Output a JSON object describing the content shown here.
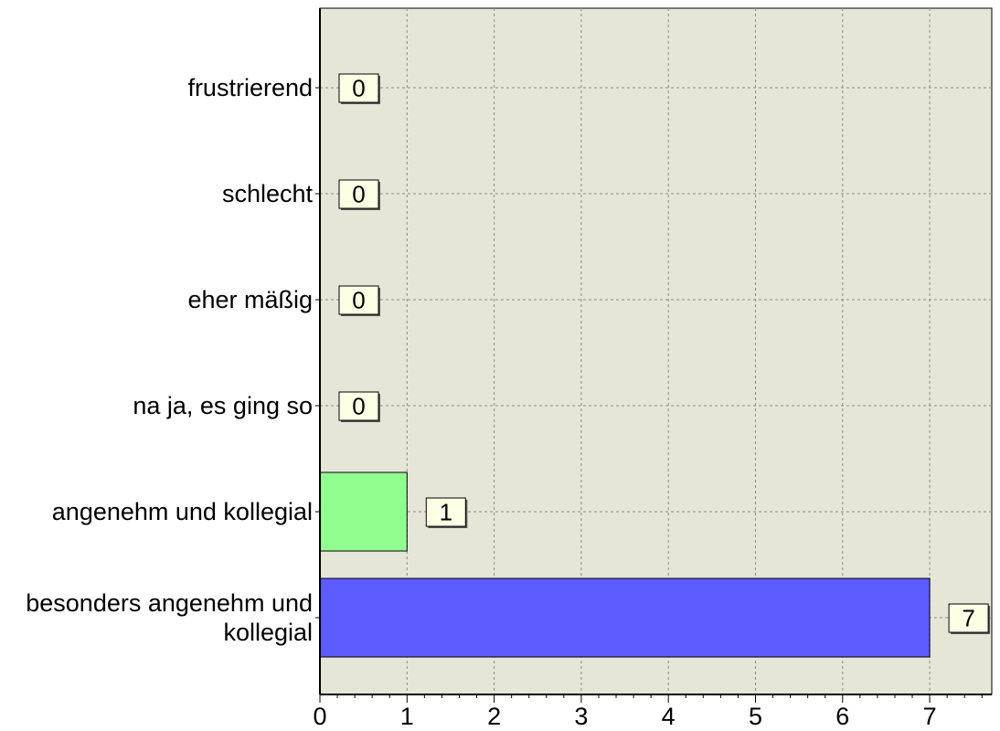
{
  "chart_data": {
    "type": "bar",
    "orientation": "horizontal",
    "categories": [
      "frustrierend",
      "schlecht",
      "eher mäßig",
      "na ja, es ging so",
      "angenehm und kollegial",
      "besonders angenehm und kollegial"
    ],
    "category_lines": [
      [
        "frustrierend"
      ],
      [
        "schlecht"
      ],
      [
        "eher mäßig"
      ],
      [
        "na ja, es ging so"
      ],
      [
        "angenehm und kollegial"
      ],
      [
        "besonders angenehm und",
        "kollegial"
      ]
    ],
    "values": [
      0,
      0,
      0,
      0,
      1,
      7
    ],
    "data_labels": [
      "0",
      "0",
      "0",
      "0",
      "1",
      "7"
    ],
    "bar_colors": [
      "#9090ff",
      "#9090ff",
      "#9090ff",
      "#9090ff",
      "#90ff90",
      "#5b5bff"
    ],
    "xlim": [
      0,
      7.7
    ],
    "xticks": [
      0,
      1,
      2,
      3,
      4,
      5,
      6,
      7
    ],
    "xtick_labels": [
      "0",
      "1",
      "2",
      "3",
      "4",
      "5",
      "6",
      "7"
    ],
    "grid": true,
    "title": "",
    "xlabel": "",
    "ylabel": "",
    "colors": {
      "plot_background": "#e6e6d8",
      "grid": "#8a8a8a",
      "label_box": "#ffffe6"
    }
  }
}
